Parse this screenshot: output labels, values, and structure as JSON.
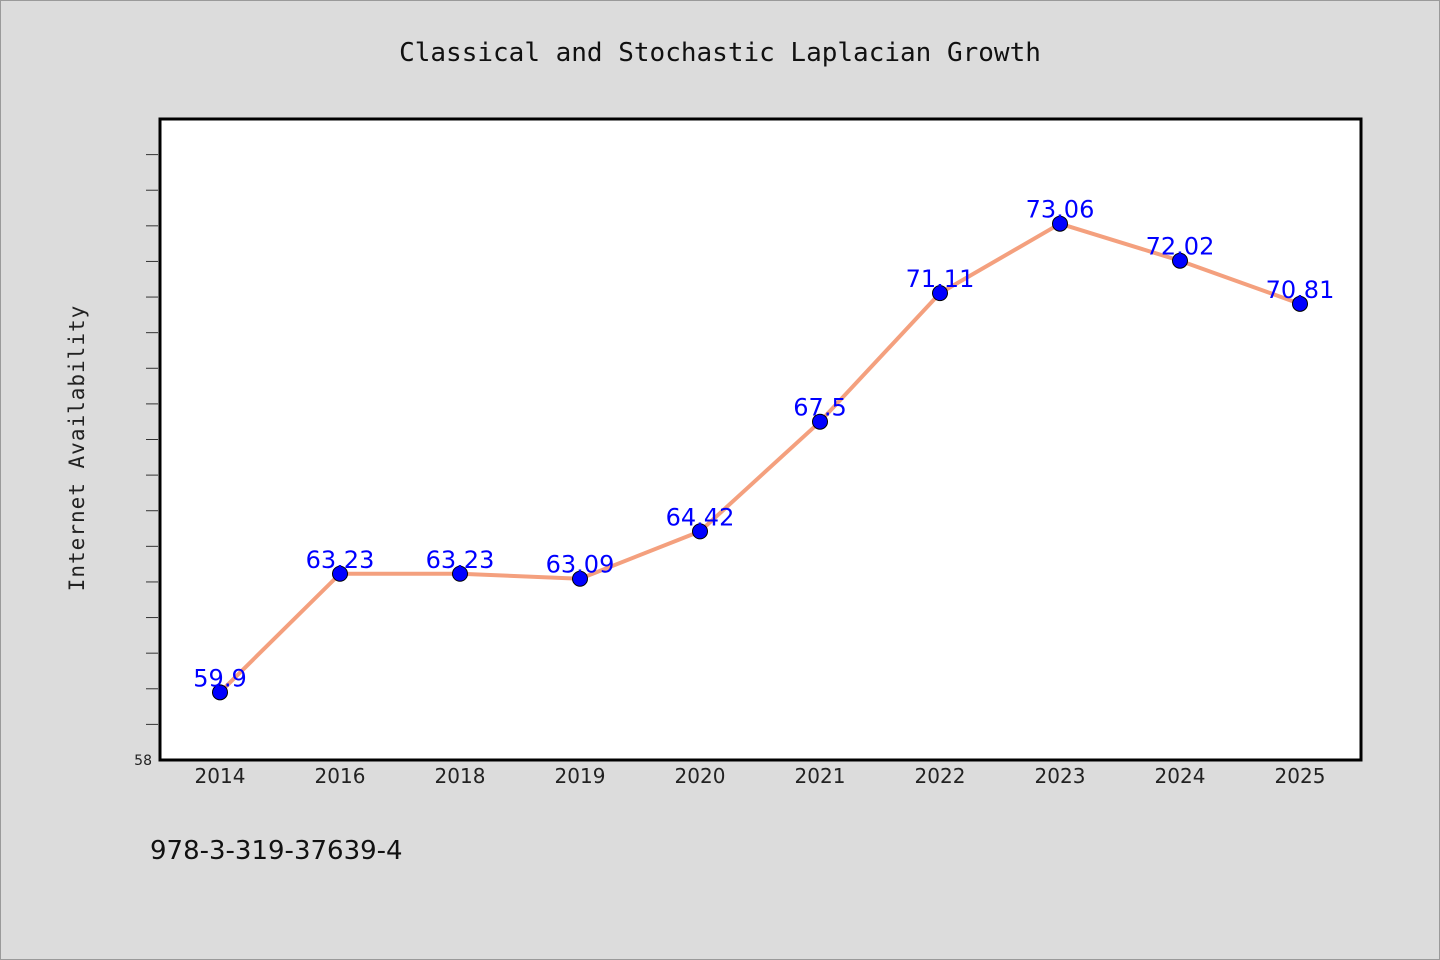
{
  "chart_data": {
    "type": "line",
    "title": "Classical and Stochastic Laplacian Growth",
    "xlabel": "",
    "ylabel": "Internet Availability",
    "categories": [
      "2014",
      "2016",
      "2018",
      "2019",
      "2020",
      "2021",
      "2022",
      "2023",
      "2024",
      "2025"
    ],
    "series": [
      {
        "values": [
          59.9,
          63.23,
          63.23,
          63.09,
          64.42,
          67.5,
          71.11,
          73.06,
          72.02,
          70.81
        ],
        "labels": [
          "59.9",
          "63.23",
          "63.23",
          "63.09",
          "64.42",
          "67.5",
          "71.11",
          "73.06",
          "72.02",
          "70.81"
        ]
      }
    ],
    "ylim": [
      58,
      76
    ],
    "ytick_label": "58",
    "grid": false,
    "legend": "none",
    "line_color": "#f4a07e",
    "marker_color": "#0000ff",
    "label_color": "#0000ff",
    "plot_bg": "#ffffff",
    "page_bg": "#dcdcdc"
  },
  "footer": {
    "isbn": "978-3-319-37639-4"
  }
}
